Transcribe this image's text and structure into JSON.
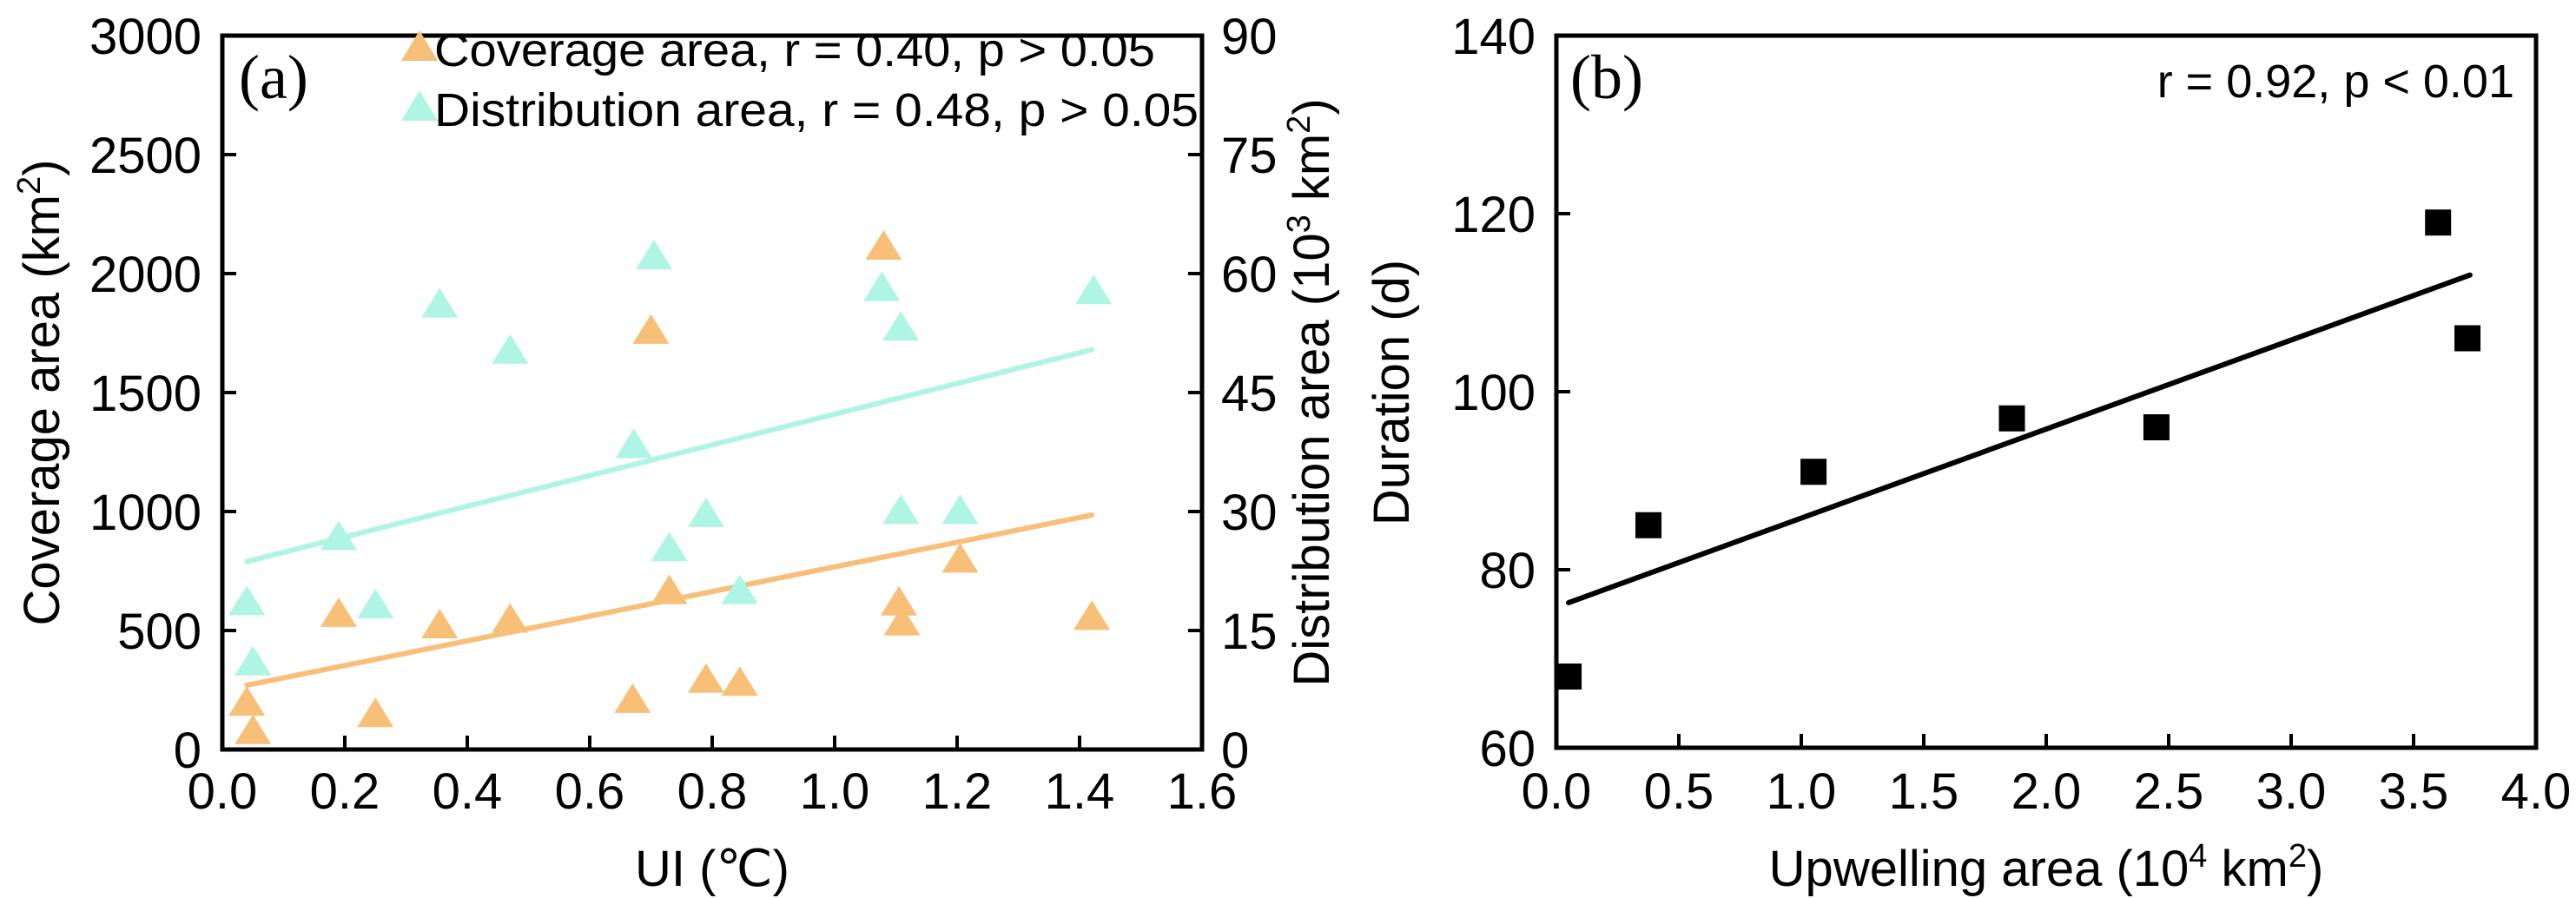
{
  "chart_data": [
    {
      "panel": "a",
      "type": "scatter",
      "panel_label": "(a)",
      "xlabel": "UI (℃)",
      "ylabel": "Coverage area (km²)",
      "ylabel_main": "Coverage area (km",
      "ylabel_sup": "2",
      "ylabel_close": ")",
      "y2label_main": "Distribution area (10",
      "y2label_sup1": "3",
      "y2label_mid": " km",
      "y2label_sup2": "2",
      "y2label_close": ")",
      "xlim": [
        0.0,
        1.6
      ],
      "ylim": [
        0,
        3000
      ],
      "y2lim": [
        0,
        90
      ],
      "xticks": [
        "0.0",
        "0.2",
        "0.4",
        "0.6",
        "0.8",
        "1.0",
        "1.2",
        "1.4",
        "1.6"
      ],
      "yticks": [
        "0",
        "500",
        "1000",
        "1500",
        "2000",
        "2500",
        "3000"
      ],
      "y2ticks": [
        "0",
        "15",
        "30",
        "45",
        "60",
        "75",
        "90"
      ],
      "grid": false,
      "legend_position": "top",
      "series": [
        {
          "name": "Coverage area",
          "legend": "Coverage area, r = 0.40, p > 0.05",
          "axis": "left",
          "marker": "triangle",
          "color": "#F7BF78",
          "x": [
            0.04,
            0.05,
            0.19,
            0.25,
            0.355,
            0.47,
            0.67,
            0.7,
            0.73,
            0.79,
            0.845,
            1.08,
            1.105,
            1.11,
            1.205,
            1.42
          ],
          "y": [
            204,
            85,
            577,
            156,
            529,
            553,
            216,
            1767,
            673,
            300,
            288,
            2120,
            625,
            541,
            805,
            565
          ],
          "fit": {
            "x": [
              0.04,
              1.42
            ],
            "y": [
              270,
              985
            ]
          }
        },
        {
          "name": "Distribution area",
          "legend": "Distribution area, r = 0.48, p > 0.05",
          "axis": "right",
          "marker": "triangle",
          "color": "#AEF5E3",
          "x": [
            0.04,
            0.05,
            0.19,
            0.25,
            0.355,
            0.47,
            0.672,
            0.705,
            0.73,
            0.79,
            0.845,
            1.077,
            1.108,
            1.108,
            1.205,
            1.423
          ],
          "y": [
            18.8,
            11.2,
            27.0,
            18.4,
            56.3,
            50.5,
            38.6,
            62.4,
            25.6,
            29.9,
            20.2,
            58.4,
            53.4,
            30.3,
            30.3,
            58.0
          ],
          "fit": {
            "x": [
              0.04,
              1.42
            ],
            "y": [
              23.7,
              50.4
            ]
          }
        }
      ]
    },
    {
      "panel": "b",
      "type": "scatter",
      "panel_label": "(b)",
      "annotation": "r = 0.92, p < 0.01",
      "xlabel": "Upwelling area (10⁴ km²)",
      "xlabel_main": "Upwelling area (10",
      "xlabel_sup1": "4",
      "xlabel_mid": " km",
      "xlabel_sup2": "2",
      "xlabel_close": ")",
      "ylabel": "Duration (d)",
      "xlim": [
        0.0,
        4.0
      ],
      "ylim": [
        60,
        140
      ],
      "xticks": [
        "0.0",
        "0.5",
        "1.0",
        "1.5",
        "2.0",
        "2.5",
        "3.0",
        "3.5",
        "4.0"
      ],
      "yticks": [
        "60",
        "80",
        "100",
        "120",
        "140"
      ],
      "grid": false,
      "series": [
        {
          "name": "Duration",
          "marker": "square",
          "color": "#000000",
          "x": [
            0.05,
            0.376,
            1.05,
            1.86,
            2.45,
            3.6,
            3.72
          ],
          "y": [
            68,
            85,
            91,
            97,
            96,
            119,
            106
          ],
          "fit": {
            "x": [
              0.05,
              3.73
            ],
            "y": [
              76.3,
              113.1
            ]
          }
        }
      ]
    }
  ]
}
